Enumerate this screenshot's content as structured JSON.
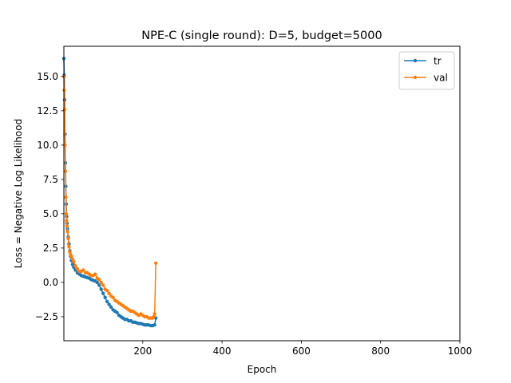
{
  "chart_data": {
    "type": "line",
    "title": "NPE-C (single round): D=5, budget=5000",
    "xlabel": "Epoch",
    "ylabel": "Loss = Negative Log Likelihood",
    "xlim": [
      1,
      1000
    ],
    "ylim": [
      -4.25,
      17.2
    ],
    "xticks": [
      200,
      400,
      600,
      800,
      1000
    ],
    "xtick_labels": [
      "200",
      "400",
      "600",
      "800",
      "1000"
    ],
    "yticks": [
      -2.5,
      0.0,
      2.5,
      5.0,
      7.5,
      10.0,
      12.5,
      15.0
    ],
    "ytick_labels": [
      "−2.5",
      "0.0",
      "2.5",
      "5.0",
      "7.5",
      "10.0",
      "12.5",
      "15.0"
    ],
    "grid": false,
    "legend_position": "top-right",
    "series": [
      {
        "name": "tr",
        "color": "#1f77b4",
        "x": [
          1,
          2,
          3,
          4,
          5,
          6,
          7,
          8,
          9,
          10,
          12,
          14,
          16,
          18,
          20,
          23,
          26,
          30,
          35,
          40,
          45,
          50,
          55,
          60,
          65,
          70,
          75,
          80,
          85,
          90,
          95,
          100,
          105,
          110,
          115,
          120,
          125,
          130,
          135,
          140,
          145,
          150,
          155,
          160,
          165,
          170,
          175,
          180,
          185,
          190,
          195,
          200,
          205,
          210,
          215,
          220,
          225,
          230,
          233
        ],
        "y": [
          16.3,
          15.1,
          13.3,
          10.8,
          8.7,
          7.0,
          5.7,
          4.8,
          4.3,
          3.9,
          3.3,
          2.8,
          2.3,
          1.9,
          1.6,
          1.3,
          1.1,
          0.9,
          0.7,
          0.6,
          0.5,
          0.45,
          0.4,
          0.35,
          0.3,
          0.2,
          0.15,
          0.1,
          0.0,
          -0.2,
          -0.5,
          -0.8,
          -1.1,
          -1.4,
          -1.6,
          -1.8,
          -2.0,
          -2.1,
          -2.2,
          -2.4,
          -2.5,
          -2.6,
          -2.7,
          -2.7,
          -2.8,
          -2.8,
          -2.9,
          -2.9,
          -2.95,
          -3.0,
          -3.0,
          -3.05,
          -3.1,
          -3.1,
          -3.1,
          -3.15,
          -3.15,
          -3.1,
          -2.6
        ]
      },
      {
        "name": "val",
        "color": "#ff7f0e",
        "x": [
          1,
          2,
          3,
          4,
          5,
          6,
          7,
          8,
          9,
          10,
          12,
          14,
          16,
          18,
          20,
          23,
          26,
          30,
          35,
          40,
          45,
          50,
          55,
          60,
          65,
          70,
          75,
          80,
          85,
          90,
          95,
          100,
          105,
          110,
          115,
          120,
          125,
          130,
          135,
          140,
          145,
          150,
          155,
          160,
          165,
          170,
          175,
          180,
          185,
          190,
          195,
          200,
          205,
          210,
          215,
          220,
          225,
          228,
          230,
          233
        ],
        "y": [
          15.0,
          14.0,
          12.6,
          10.0,
          8.1,
          6.2,
          5.0,
          4.5,
          4.1,
          3.7,
          3.2,
          2.6,
          2.2,
          2.0,
          1.9,
          1.7,
          1.5,
          1.2,
          1.0,
          0.8,
          0.8,
          0.9,
          0.7,
          0.7,
          0.6,
          0.5,
          0.5,
          0.6,
          0.3,
          0.2,
          0.0,
          -0.2,
          -0.5,
          -0.6,
          -0.8,
          -1.0,
          -1.1,
          -1.3,
          -1.4,
          -1.5,
          -1.6,
          -1.7,
          -1.8,
          -1.9,
          -2.0,
          -2.1,
          -2.1,
          -2.2,
          -2.3,
          -2.4,
          -2.3,
          -2.4,
          -2.5,
          -2.5,
          -2.6,
          -2.6,
          -2.6,
          -2.5,
          -2.3,
          1.4
        ]
      }
    ]
  }
}
